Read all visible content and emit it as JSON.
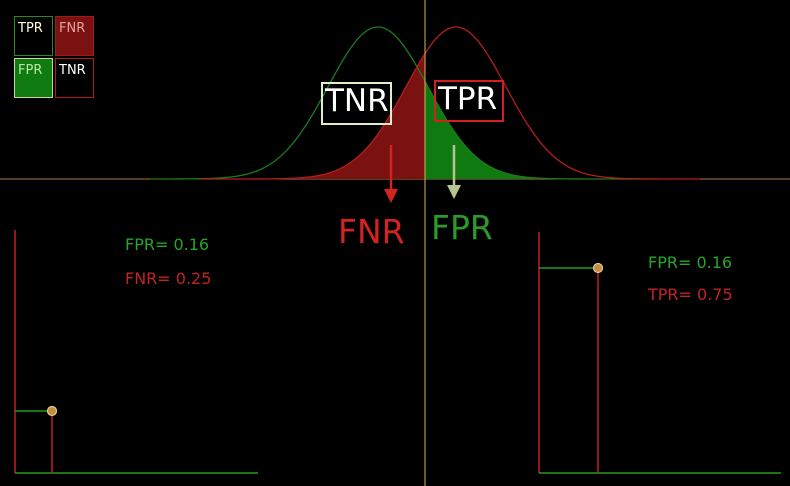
{
  "legend": {
    "top_left": "TPR",
    "top_right": "FNR",
    "bottom_left": "FPR",
    "bottom_right": "TNR"
  },
  "distribution_labels": {
    "negative_box": "TNR",
    "positive_box": "TPR",
    "below_left": "FNR",
    "below_right": "FPR"
  },
  "left_plot": {
    "line1": "FPR= 0.16",
    "line2": "FNR= 0.25"
  },
  "right_plot": {
    "line1": "FPR= 0.16",
    "line2": "TPR= 0.75"
  },
  "colors": {
    "background": "#000000",
    "green": "#1f8a1f",
    "red": "#b71c1c",
    "threshold": "#d9b35a"
  },
  "threshold": {
    "fpr": 0.16,
    "fnr": 0.25,
    "tpr": 0.75
  }
}
